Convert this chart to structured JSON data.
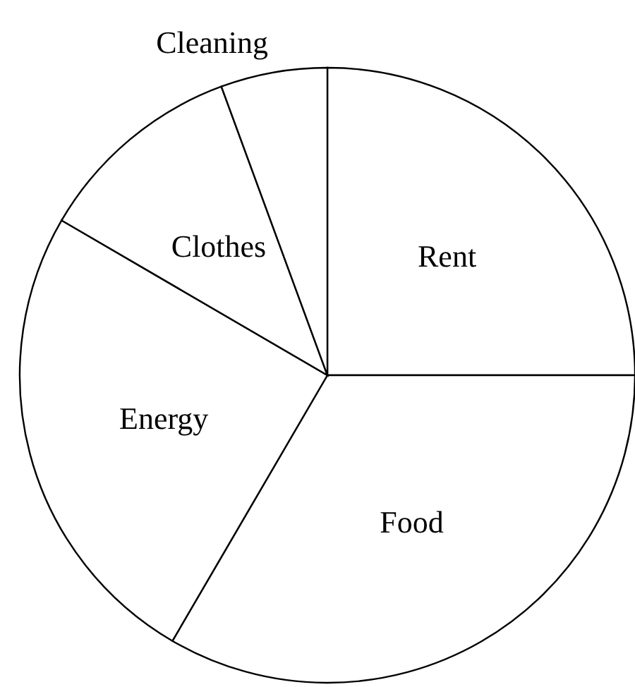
{
  "chart_data": {
    "type": "pie",
    "categories": [
      "Rent",
      "Food",
      "Energy",
      "Clothes",
      "Cleaning"
    ],
    "values": [
      25,
      33.4,
      25,
      11,
      5.6
    ],
    "colors": [
      "#ffffff",
      "#ffffff",
      "#ffffff",
      "#ffffff",
      "#ffffff"
    ]
  }
}
